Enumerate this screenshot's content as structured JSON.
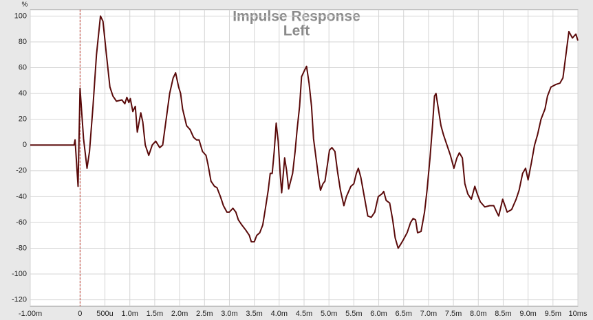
{
  "chart_data": {
    "type": "line",
    "title": "Impulse Response",
    "subtitle": "Left",
    "y_label": "%",
    "color": "#5a0a0a",
    "marker_color": "#c0392b",
    "grid": true,
    "xlim": [
      -1,
      10
    ],
    "ylim": [
      -125,
      105
    ],
    "xticks": [
      {
        "value": -1,
        "label": "-1.00m"
      },
      0,
      {
        "value": 0.5,
        "label": "500u"
      },
      {
        "value": 1,
        "label": "1.0m"
      },
      {
        "value": 1.5,
        "label": "1.5m"
      },
      {
        "value": 2,
        "label": "2.0m"
      },
      {
        "value": 2.5,
        "label": "2.5m"
      },
      {
        "value": 3,
        "label": "3.0m"
      },
      {
        "value": 3.5,
        "label": "3.5m"
      },
      {
        "value": 4,
        "label": "4.0m"
      },
      {
        "value": 4.5,
        "label": "4.5m"
      },
      {
        "value": 5,
        "label": "5.0m"
      },
      {
        "value": 5.5,
        "label": "5.5m"
      },
      {
        "value": 6,
        "label": "6.0m"
      },
      {
        "value": 6.5,
        "label": "6.5m"
      },
      {
        "value": 7,
        "label": "7.0m"
      },
      {
        "value": 7.5,
        "label": "7.5m"
      },
      {
        "value": 8,
        "label": "8.0m"
      },
      {
        "value": 8.5,
        "label": "8.5m"
      },
      {
        "value": 9,
        "label": "9.0m"
      },
      {
        "value": 9.5,
        "label": "9.5m"
      },
      {
        "value": 10,
        "label": "10ms"
      }
    ],
    "yticks": [
      100,
      80,
      60,
      40,
      20,
      0,
      -20,
      -40,
      -60,
      -80,
      -100,
      -120
    ],
    "x": [
      -1.0,
      -0.3,
      -0.12,
      -0.1,
      -0.04,
      0.0,
      0.07,
      0.14,
      0.19,
      0.26,
      0.33,
      0.41,
      0.46,
      0.53,
      0.6,
      0.66,
      0.73,
      0.84,
      0.9,
      0.94,
      0.98,
      1.01,
      1.06,
      1.11,
      1.15,
      1.22,
      1.26,
      1.31,
      1.38,
      1.45,
      1.52,
      1.6,
      1.66,
      1.73,
      1.8,
      1.87,
      1.92,
      1.98,
      2.02,
      2.06,
      2.14,
      2.21,
      2.28,
      2.34,
      2.39,
      2.46,
      2.53,
      2.57,
      2.63,
      2.7,
      2.75,
      2.82,
      2.88,
      2.95,
      3.0,
      3.07,
      3.13,
      3.18,
      3.25,
      3.33,
      3.4,
      3.44,
      3.5,
      3.55,
      3.61,
      3.67,
      3.72,
      3.78,
      3.82,
      3.86,
      3.9,
      3.94,
      3.98,
      4.02,
      4.05,
      4.11,
      4.15,
      4.19,
      4.25,
      4.27,
      4.32,
      4.36,
      4.41,
      4.45,
      4.51,
      4.55,
      4.6,
      4.65,
      4.69,
      4.74,
      4.79,
      4.83,
      4.88,
      4.92,
      4.97,
      5.01,
      5.06,
      5.12,
      5.17,
      5.23,
      5.3,
      5.35,
      5.44,
      5.5,
      5.55,
      5.59,
      5.64,
      5.71,
      5.78,
      5.85,
      5.92,
      5.99,
      6.06,
      6.1,
      6.15,
      6.22,
      6.28,
      6.33,
      6.39,
      6.44,
      6.5,
      6.57,
      6.64,
      6.69,
      6.74,
      6.78,
      6.85,
      6.92,
      6.97,
      7.03,
      7.08,
      7.12,
      7.15,
      7.19,
      7.25,
      7.3,
      7.37,
      7.44,
      7.51,
      7.57,
      7.62,
      7.68,
      7.73,
      7.79,
      7.86,
      7.93,
      7.98,
      8.04,
      8.13,
      8.23,
      8.31,
      8.37,
      8.41,
      8.49,
      8.58,
      8.67,
      8.76,
      8.82,
      8.89,
      8.95,
      9.0,
      9.07,
      9.13,
      9.19,
      9.26,
      9.34,
      9.39,
      9.46,
      9.56,
      9.64,
      9.7,
      9.76,
      9.82,
      9.89,
      9.96,
      10.0
    ],
    "values": [
      0,
      0,
      0,
      4,
      -32,
      44,
      5,
      -18,
      -5,
      30,
      70,
      100,
      96,
      70,
      45,
      38,
      34,
      35,
      32,
      37,
      33,
      36,
      26,
      30,
      10,
      25,
      18,
      0,
      -8,
      0,
      3,
      -2,
      0,
      20,
      40,
      52,
      56,
      45,
      40,
      28,
      15,
      12,
      6,
      4,
      4,
      -5,
      -8,
      -15,
      -28,
      -32,
      -33,
      -40,
      -47,
      -52,
      -52,
      -49,
      -52,
      -58,
      -62,
      -66,
      -70,
      -75,
      -75,
      -70,
      -68,
      -62,
      -50,
      -35,
      -22,
      -22,
      -5,
      17,
      3,
      -22,
      -37,
      -10,
      -20,
      -34,
      -25,
      -22,
      -5,
      12,
      30,
      53,
      58,
      61,
      48,
      30,
      5,
      -10,
      -25,
      -35,
      -30,
      -28,
      -15,
      -4,
      -2,
      -5,
      -20,
      -35,
      -47,
      -40,
      -32,
      -30,
      -22,
      -18,
      -25,
      -40,
      -55,
      -56,
      -52,
      -40,
      -38,
      -36,
      -43,
      -45,
      -58,
      -72,
      -80,
      -77,
      -73,
      -68,
      -60,
      -57,
      -58,
      -68,
      -67,
      -52,
      -35,
      -10,
      15,
      38,
      40,
      30,
      15,
      8,
      0,
      -8,
      -18,
      -10,
      -6,
      -10,
      -30,
      -38,
      -42,
      -32,
      -38,
      -44,
      -48,
      -47,
      -47,
      -52,
      -55,
      -42,
      -52,
      -50,
      -42,
      -35,
      -22,
      -18,
      -27,
      -13,
      0,
      8,
      20,
      28,
      38,
      45,
      47,
      48,
      52,
      70,
      88,
      83,
      86,
      81
    ]
  }
}
